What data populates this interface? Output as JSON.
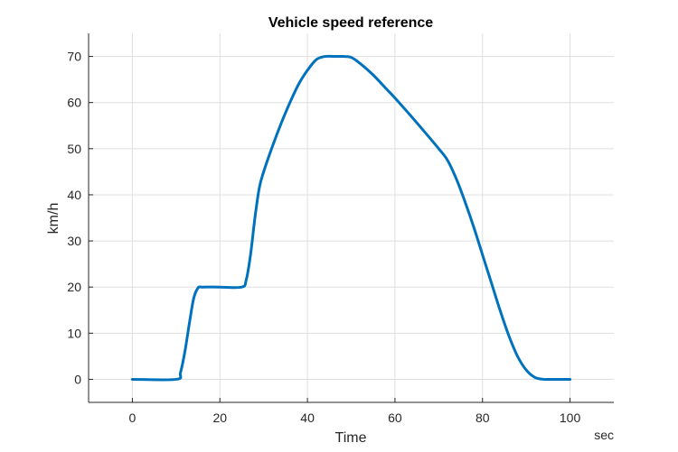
{
  "chart_data": {
    "type": "line",
    "title": "Vehicle speed reference",
    "xlabel": "Time",
    "ylabel": "km/h",
    "x_unit": "sec",
    "xlim": [
      -10,
      110
    ],
    "ylim": [
      -5,
      75
    ],
    "xticks": [
      0,
      20,
      40,
      60,
      80,
      100
    ],
    "yticks": [
      0,
      10,
      20,
      30,
      40,
      50,
      60,
      70
    ],
    "grid": true,
    "line_color": "#0072bd",
    "series": [
      {
        "x": [
          0,
          10,
          11,
          12,
          13,
          14,
          15,
          16,
          20,
          25,
          26,
          27,
          28,
          29,
          30,
          32,
          34,
          36,
          38,
          40,
          42,
          44,
          46,
          48,
          50,
          52,
          55,
          58,
          60,
          63,
          66,
          70,
          72,
          74,
          76,
          78,
          80,
          82,
          84,
          86,
          88,
          90,
          92,
          94,
          95,
          100
        ],
        "y": [
          0,
          0,
          1.5,
          6,
          12,
          17.5,
          19.8,
          20,
          20,
          20,
          21.5,
          27,
          35,
          41.5,
          45,
          50.5,
          55.5,
          60,
          64,
          67,
          69.3,
          70,
          70,
          70,
          69.8,
          68.5,
          66,
          63,
          61,
          57.8,
          54.5,
          50,
          47.5,
          43.5,
          38.5,
          33,
          27,
          21,
          15,
          9.5,
          5,
          2,
          0.4,
          0,
          0,
          0
        ]
      }
    ]
  }
}
